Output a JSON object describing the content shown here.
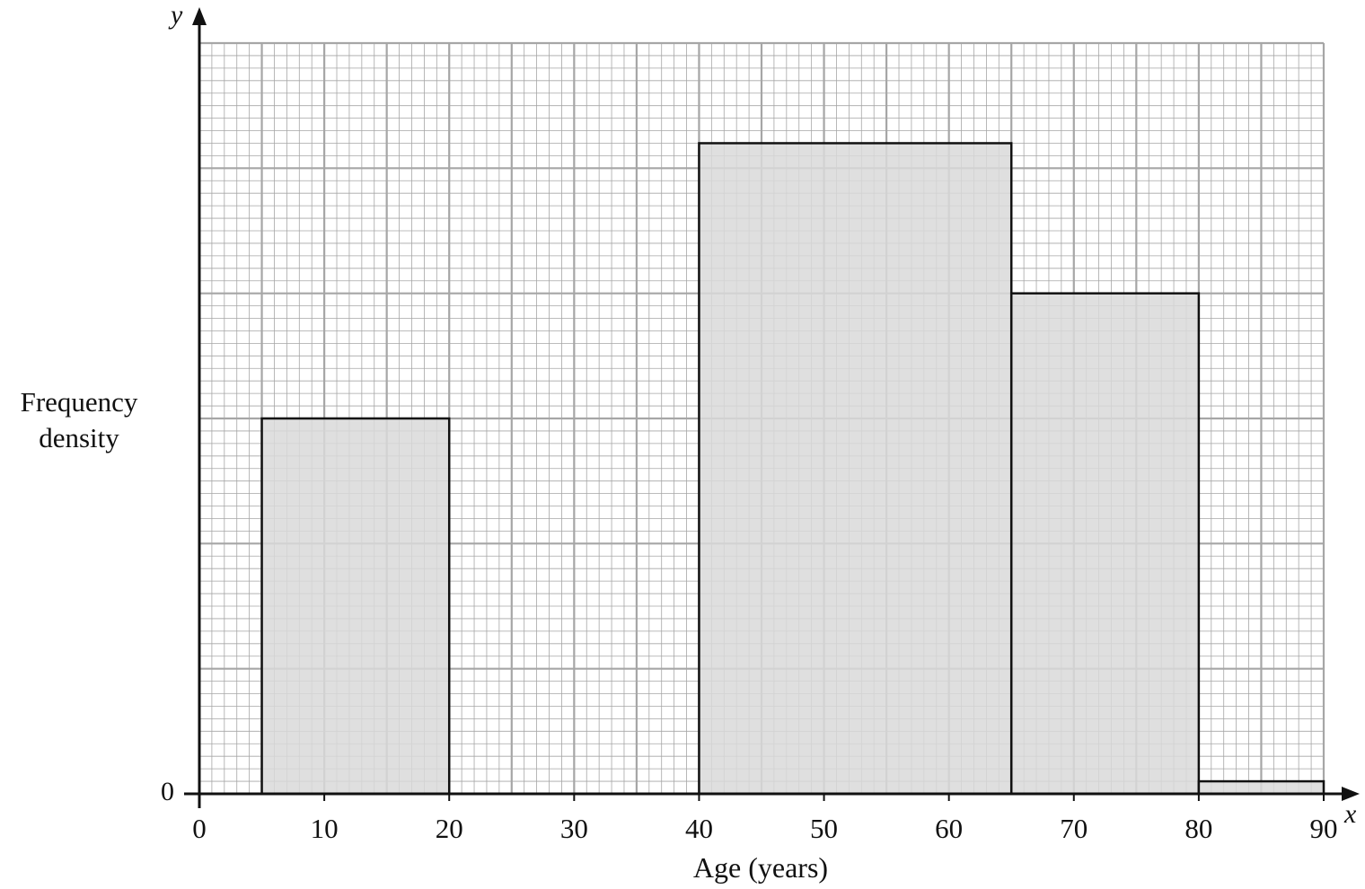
{
  "chart_data": {
    "type": "bar",
    "subtype": "histogram",
    "xlabel": "Age (years)",
    "ylabel_lines": [
      "Frequency",
      "density"
    ],
    "x_axis_variable": "x",
    "y_axis_variable": "y",
    "y_zero_label": "0",
    "xlim": [
      0,
      90
    ],
    "x_ticks": [
      0,
      10,
      20,
      30,
      40,
      50,
      60,
      70,
      80,
      90
    ],
    "x_tick_labels": [
      "0",
      "10",
      "20",
      "30",
      "40",
      "50",
      "60",
      "70",
      "80",
      "90"
    ],
    "y_scale": "unlabelled; values in major-gridline units",
    "ylim": [
      0,
      6
    ],
    "grid": true,
    "bars": [
      {
        "x_start": 5,
        "x_end": 20,
        "height": 3.0
      },
      {
        "x_start": 40,
        "x_end": 65,
        "height": 5.2
      },
      {
        "x_start": 65,
        "x_end": 80,
        "height": 4.0
      },
      {
        "x_start": 80,
        "x_end": 90,
        "height": 0.1
      }
    ],
    "colors": {
      "bar_fill": "#d9d9d9",
      "bar_stroke": "#111111",
      "grid": "#a6a6a6",
      "axis": "#111111"
    }
  }
}
